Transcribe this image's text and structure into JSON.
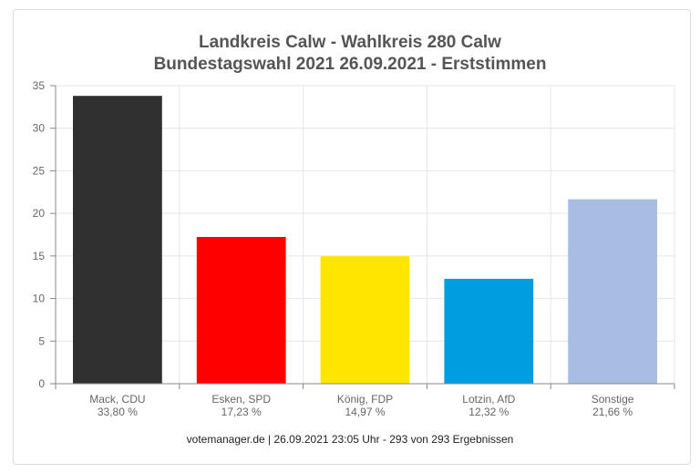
{
  "chart_data": {
    "type": "bar",
    "title": "Landkreis Calw - Wahlkreis 280 Calw",
    "subtitle": "Bundestagswahl 2021 26.09.2021  - Erststimmen",
    "categories": [
      "Mack, CDU",
      "Esken, SPD",
      "König, FDP",
      "Lotzin, AfD",
      "Sonstige"
    ],
    "values": [
      33.8,
      17.23,
      14.97,
      12.32,
      21.66
    ],
    "value_labels": [
      "33,80 %",
      "17,23 %",
      "14,97 %",
      "12,32 %",
      "21,66 %"
    ],
    "colors": [
      "#303030",
      "#ff0000",
      "#ffe600",
      "#009ee0",
      "#a9bde2"
    ],
    "yticks": [
      "0",
      "5",
      "10",
      "15",
      "20",
      "25",
      "30",
      "35"
    ],
    "ylim": [
      0,
      35
    ],
    "grid": true,
    "xlabel": "",
    "ylabel": "",
    "footer": "votemanager.de | 26.09.2021 23:05 Uhr - 293 von 293 Ergebnissen"
  }
}
